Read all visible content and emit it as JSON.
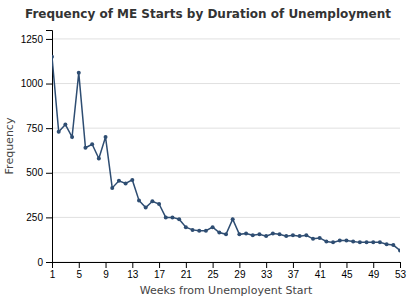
{
  "chart_data": {
    "type": "line",
    "title": "Frequency of ME Starts by Duration of Unemployment",
    "xlabel": "Weeks from Unemployent Start",
    "ylabel": "Frequency",
    "x": [
      1,
      2,
      3,
      4,
      5,
      6,
      7,
      8,
      9,
      10,
      11,
      12,
      13,
      14,
      15,
      16,
      17,
      18,
      19,
      20,
      21,
      22,
      23,
      24,
      25,
      26,
      27,
      28,
      29,
      30,
      31,
      32,
      33,
      34,
      35,
      36,
      37,
      38,
      39,
      40,
      41,
      42,
      43,
      44,
      45,
      46,
      47,
      48,
      49,
      50,
      51,
      52,
      53
    ],
    "values": [
      1150,
      730,
      770,
      700,
      1060,
      640,
      660,
      580,
      700,
      415,
      455,
      440,
      460,
      345,
      305,
      340,
      325,
      250,
      250,
      240,
      195,
      180,
      175,
      175,
      195,
      165,
      155,
      240,
      155,
      160,
      150,
      155,
      145,
      160,
      155,
      145,
      150,
      145,
      150,
      130,
      135,
      115,
      110,
      120,
      120,
      115,
      110,
      110,
      110,
      110,
      100,
      95,
      65
    ],
    "color": "#2e4d72",
    "marker": "o",
    "xlim": [
      1,
      53
    ],
    "xticks": [
      1,
      5,
      9,
      13,
      17,
      21,
      25,
      29,
      33,
      37,
      41,
      45,
      49,
      53
    ],
    "ylim": [
      0,
      1300
    ],
    "yticks": [
      0,
      250,
      500,
      750,
      1000,
      1250
    ],
    "grid": true
  }
}
